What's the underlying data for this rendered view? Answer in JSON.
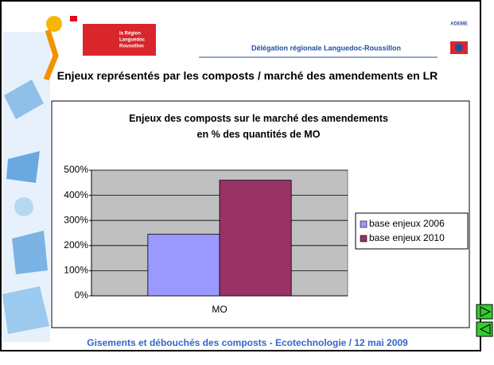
{
  "header": {
    "region_logo": [
      "la Région",
      "Languedoc",
      "Roussillon"
    ],
    "delegation": "Délégation régionale Languedoc-Roussillon",
    "ademe": "ADEME"
  },
  "slide_title": "Enjeux représentés par les composts / marché des amendements en LR",
  "footer": "Gisements et débouchés des composts -  Ecotechnologie  /  12 mai 2009",
  "chart_data": {
    "type": "bar",
    "title": "Enjeux des composts sur le marché des amendements en % des quantités de MO",
    "categories": [
      "MO"
    ],
    "series": [
      {
        "name": "base enjeux 2006",
        "color": "#9999ff",
        "values": [
          245
        ]
      },
      {
        "name": "base enjeux 2010",
        "color": "#993366",
        "values": [
          460
        ]
      }
    ],
    "ylim": [
      0,
      500
    ],
    "yticks": [
      {
        "value": 0,
        "label": "0%"
      },
      {
        "value": 100,
        "label": "100%"
      },
      {
        "value": 200,
        "label": "200%"
      },
      {
        "value": 300,
        "label": "300%"
      },
      {
        "value": 400,
        "label": "400%"
      },
      {
        "value": 500,
        "label": "500%"
      }
    ],
    "grid": true,
    "legend": "right"
  }
}
